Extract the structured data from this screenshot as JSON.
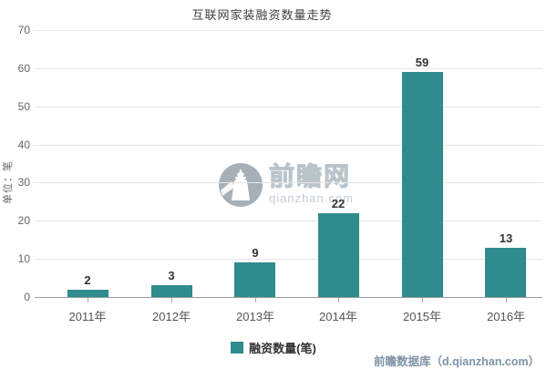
{
  "chart": {
    "title": "互联网家装融资数量走势",
    "y_axis_name": "单位：笔",
    "legend_label": "融资数量(笔)"
  },
  "chart_data": {
    "type": "bar",
    "title": "互联网家装融资数量走势",
    "categories": [
      "2011年",
      "2012年",
      "2013年",
      "2014年",
      "2015年",
      "2016年"
    ],
    "values": [
      2,
      3,
      9,
      22,
      59,
      13
    ],
    "series_name": "融资数量(笔)",
    "xlabel": "",
    "ylabel": "单位：笔",
    "ylim": [
      0,
      70
    ],
    "y_ticks": [
      0,
      10,
      20,
      30,
      40,
      50,
      60,
      70
    ],
    "grid": true,
    "legend_position": "bottom",
    "bar_color": "#2F8B8D"
  },
  "watermark": {
    "brand": "前瞻网",
    "domain": "qianzhan.com"
  },
  "footer": {
    "source": "前瞻数据库（d.qianzhan.com）"
  },
  "colors": {
    "bar": "#2F8B8D",
    "gridline": "#e6e6e6",
    "axis_line": "#9a9a9a",
    "source_text": "#7d93a6"
  }
}
